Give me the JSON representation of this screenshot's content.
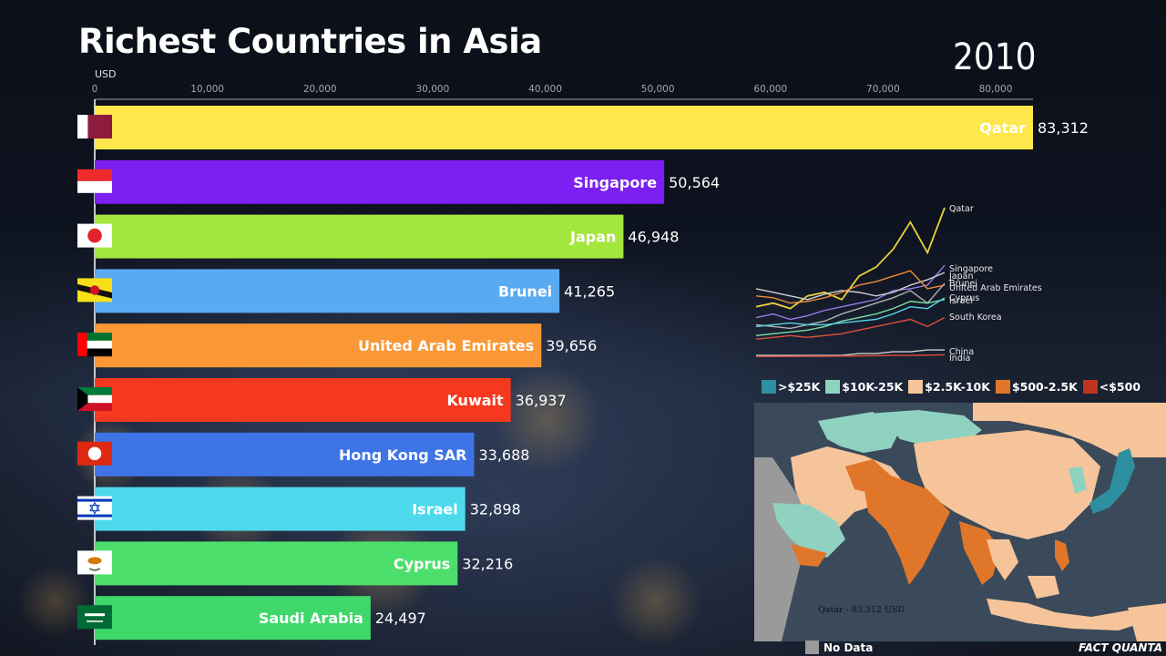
{
  "title": "Richest Countries in Asia",
  "year": "2010",
  "unit_label": "USD",
  "chart_data": [
    {
      "type": "bar",
      "orientation": "horizontal",
      "xlim": [
        0,
        83312
      ],
      "x_ticks": [
        0,
        10000,
        20000,
        30000,
        40000,
        50000,
        60000,
        70000,
        80000
      ],
      "x_tick_labels": [
        "0",
        "10,000",
        "20,000",
        "30,000",
        "40,000",
        "50,000",
        "60,000",
        "70,000",
        "80,000"
      ],
      "bars": [
        {
          "country": "Qatar",
          "value": 83312,
          "value_label": "83,312",
          "color": "#fde74c",
          "flag": "qatar"
        },
        {
          "country": "Singapore",
          "value": 50564,
          "value_label": "50,564",
          "color": "#7b1ff2",
          "flag": "singapore"
        },
        {
          "country": "Japan",
          "value": 46948,
          "value_label": "46,948",
          "color": "#a3e63c",
          "flag": "japan"
        },
        {
          "country": "Brunei",
          "value": 41265,
          "value_label": "41,265",
          "color": "#5aaaf2",
          "flag": "brunei"
        },
        {
          "country": "United Arab Emirates",
          "value": 39656,
          "value_label": "39,656",
          "color": "#fb9836",
          "flag": "uae"
        },
        {
          "country": "Kuwait",
          "value": 36937,
          "value_label": "36,937",
          "color": "#f5381e",
          "flag": "kuwait"
        },
        {
          "country": "Hong Kong SAR",
          "value": 33688,
          "value_label": "33,688",
          "color": "#3f74e6",
          "flag": "hongkong"
        },
        {
          "country": "Israel",
          "value": 32898,
          "value_label": "32,898",
          "color": "#4dd9ec",
          "flag": "israel"
        },
        {
          "country": "Cyprus",
          "value": 32216,
          "value_label": "32,216",
          "color": "#4ddf6c",
          "flag": "cyprus"
        },
        {
          "country": "Saudi Arabia",
          "value": 24497,
          "value_label": "24,497",
          "color": "#3ed96a",
          "flag": "saudi"
        }
      ]
    },
    {
      "type": "line",
      "series": [
        {
          "name": "Qatar",
          "color": "#e8d23a",
          "values": [
            28,
            30,
            27,
            34,
            36,
            32,
            45,
            50,
            60,
            75,
            58,
            83
          ]
        },
        {
          "name": "Singapore",
          "color": "#9a7be8",
          "values": [
            22,
            24,
            21,
            23,
            26,
            28,
            30,
            32,
            37,
            38,
            40,
            51
          ]
        },
        {
          "name": "Japan",
          "color": "#cfcfcf",
          "values": [
            38,
            36,
            34,
            32,
            35,
            37,
            36,
            34,
            36,
            40,
            43,
            47
          ]
        },
        {
          "name": "Brunei",
          "color": "#b0b0b0",
          "values": [
            18,
            17,
            16,
            18,
            20,
            24,
            27,
            30,
            33,
            37,
            30,
            41
          ]
        },
        {
          "name": "United Arab Emirates",
          "color": "#f08a3a",
          "values": [
            34,
            33,
            30,
            31,
            33,
            36,
            40,
            42,
            45,
            48,
            38,
            40
          ]
        },
        {
          "name": "Cyprus",
          "color": "#7adfa0",
          "values": [
            12,
            13,
            14,
            15,
            17,
            20,
            22,
            24,
            27,
            31,
            30,
            32
          ]
        },
        {
          "name": "Israel",
          "color": "#58d2e6",
          "values": [
            17,
            18,
            19,
            18,
            18,
            19,
            20,
            21,
            24,
            28,
            27,
            33
          ]
        },
        {
          "name": "South Korea",
          "color": "#e0503a",
          "values": [
            10,
            11,
            12,
            11,
            12,
            13,
            15,
            17,
            19,
            21,
            17,
            22
          ]
        },
        {
          "name": "China",
          "color": "#d0d0d0",
          "values": [
            1,
            1,
            1,
            1,
            1,
            1,
            2,
            2,
            3,
            3,
            4,
            4
          ]
        },
        {
          "name": "India",
          "color": "#e0503a",
          "values": [
            0.4,
            0.4,
            0.4,
            0.5,
            0.5,
            0.6,
            0.7,
            0.8,
            1.0,
            1.0,
            1.1,
            1.3
          ]
        }
      ]
    }
  ],
  "legend": [
    {
      "label": ">$25K",
      "color": "#2e8fa0"
    },
    {
      "label": "$10K-25K",
      "color": "#8fd2c0"
    },
    {
      "label": "$2.5K-10K",
      "color": "#f6c49a"
    },
    {
      "label": "$500-2.5K",
      "color": "#e0762a"
    },
    {
      "label": "<$500",
      "color": "#c0331e"
    }
  ],
  "map": {
    "label": "Qatar - 83,312 USD",
    "no_data_label": "No Data",
    "colors": {
      "ocean": "#3b4a5a",
      "high": "#2e8fa0",
      "upper_mid": "#8fd2c0",
      "mid": "#f6c49a",
      "low_mid": "#e0762a",
      "no_data": "#9a9a9a"
    }
  },
  "brand": "FACT QUANTA"
}
